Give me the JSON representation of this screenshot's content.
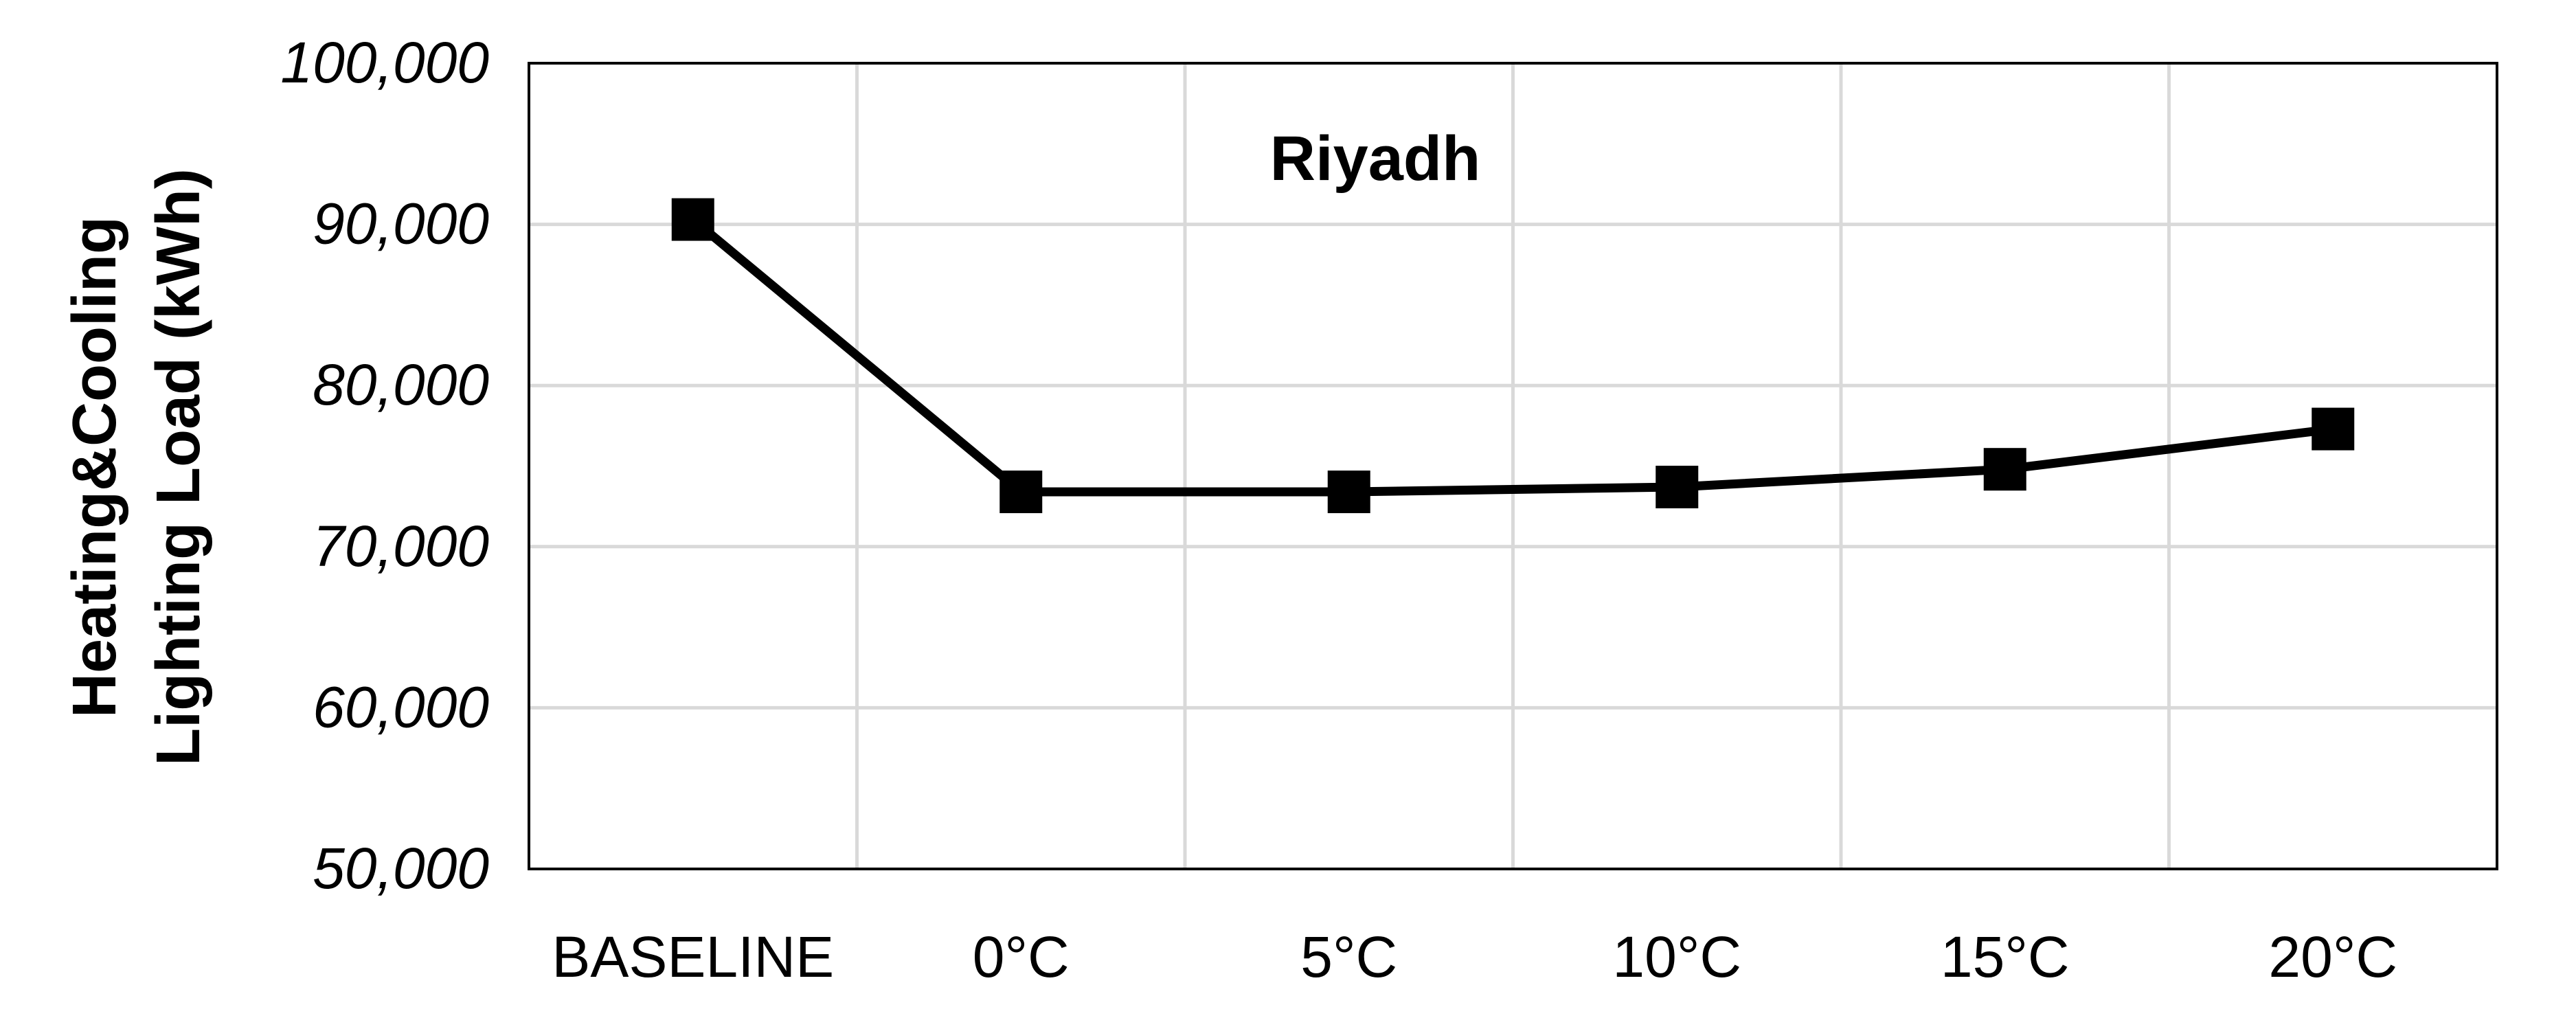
{
  "chart_data": {
    "type": "line",
    "title": "Riyadh",
    "xlabel": "",
    "ylabel_lines": [
      "Heating&Cooling",
      "Lighting Load (kWh)"
    ],
    "categories": [
      "BASELINE",
      "0°C",
      "5°C",
      "10°C",
      "15°C",
      "20°C"
    ],
    "ylim": [
      50000,
      100000
    ],
    "y_ticks": [
      50000,
      60000,
      70000,
      80000,
      90000,
      100000
    ],
    "y_tick_labels": [
      "50,000",
      "60,000",
      "70,000",
      "80,000",
      "90,000",
      "100,000"
    ],
    "grid": true,
    "legend": "none",
    "series": [
      {
        "values": [
          90300,
          73400,
          73400,
          73700,
          74800,
          77300
        ],
        "marker": "square",
        "color": "#000000"
      }
    ],
    "colors": {
      "line": "#000000",
      "grid": "#d9d9d9",
      "axes": "#000000"
    }
  }
}
